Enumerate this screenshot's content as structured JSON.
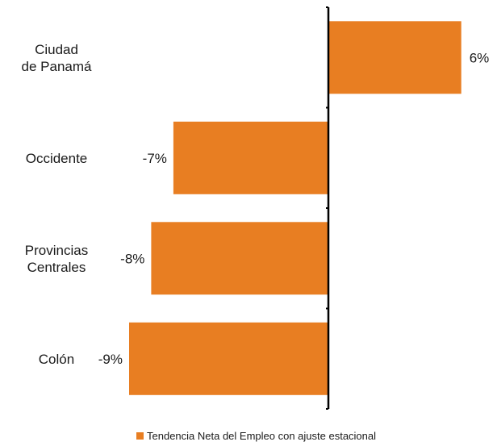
{
  "chart_data": {
    "type": "bar",
    "orientation": "horizontal",
    "categories": [
      [
        "Ciudad",
        "de Panamá"
      ],
      [
        "Occidente"
      ],
      [
        "Provincias",
        "Centrales"
      ],
      [
        "Colón"
      ]
    ],
    "series": [
      {
        "name": "Tendencia Neta del Empleo con ajuste estacional",
        "values": [
          6,
          -7,
          -8,
          -9
        ],
        "labels": [
          "6%",
          "-7%",
          "-8%",
          "-9%"
        ],
        "color": "#e87e22"
      }
    ],
    "xlim": [
      -9,
      6
    ],
    "title": "",
    "xlabel": "",
    "ylabel": "",
    "grid": false,
    "legend_position": "bottom"
  }
}
